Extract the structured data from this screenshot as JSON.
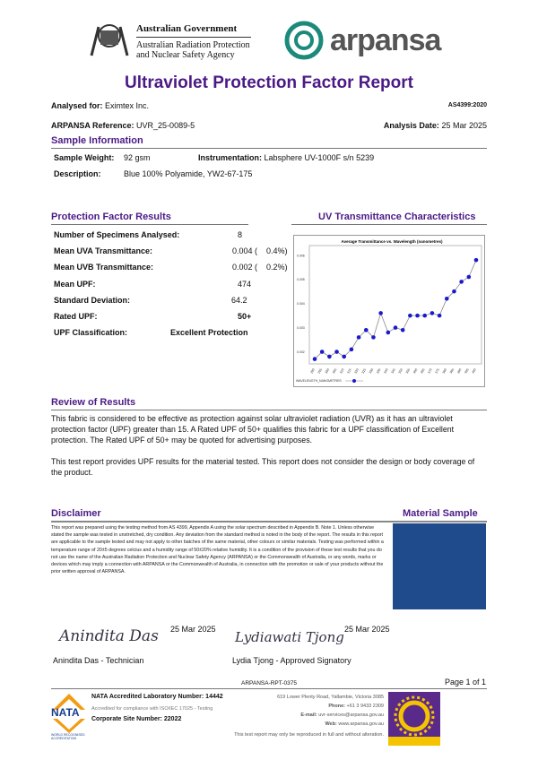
{
  "header": {
    "gov_line1": "Australian Government",
    "gov_line2": "Australian Radiation Protection",
    "gov_line3": "and Nuclear Safety Agency",
    "brand": "arpansa"
  },
  "title": "Ultraviolet Protection Factor Report",
  "meta": {
    "analysed_for_label": "Analysed for:",
    "analysed_for": "Eximtex Inc.",
    "standard": "AS4399:2020",
    "ref_label": "ARPANSA Reference:",
    "ref": "UVR_25-0089-5",
    "date_label": "Analysis Date:",
    "date": "25 Mar 2025"
  },
  "sample": {
    "heading": "Sample Information",
    "weight_label": "Sample Weight:",
    "weight": "92 gsm",
    "instr_label": "Instrumentation:",
    "instr": "Labsphere UV-1000F s/n 5239",
    "desc_label": "Description:",
    "desc": "Blue 100% Polyamide, YW2-67-175"
  },
  "results": {
    "heading": "Protection Factor Results",
    "rows": [
      {
        "label": "Number of Specimens Analysed:",
        "value": "8",
        "pct": ""
      },
      {
        "label": "Mean UVA Transmittance:",
        "value": "0.004 (",
        "pct": "0.4%)"
      },
      {
        "label": "Mean UVB Transmittance:",
        "value": "0.002 (",
        "pct": "0.2%)"
      },
      {
        "label": "Mean UPF:",
        "value": "474",
        "pct": ""
      },
      {
        "label": "Standard Deviation:",
        "value": "64.2",
        "pct": ""
      },
      {
        "label": "Rated UPF:",
        "value": "50+",
        "pct": ""
      },
      {
        "label": "UPF Classification:",
        "value": "Excellent Protection",
        "pct": ""
      }
    ]
  },
  "chart_heading": "UV Transmittance Characteristics",
  "chart_data": {
    "type": "line",
    "title": "Average Transmittance vs. Wavelength (nanometres)",
    "xlabel": "WAVELENGTH_NANOMETRES",
    "ylim": [
      0.0015,
      0.0064
    ],
    "yticks": [
      "0.002",
      "0.003",
      "0.004",
      "0.005",
      "0.006"
    ],
    "x": [
      290,
      295,
      300,
      305,
      310,
      315,
      320,
      325,
      330,
      335,
      340,
      345,
      350,
      355,
      360,
      365,
      370,
      375,
      380,
      385,
      390,
      395,
      400
    ],
    "values": [
      0.0017,
      0.002,
      0.0018,
      0.002,
      0.0018,
      0.0021,
      0.0026,
      0.0029,
      0.0026,
      0.0036,
      0.0028,
      0.003,
      0.0029,
      0.0035,
      0.0035,
      0.0035,
      0.0036,
      0.0035,
      0.0042,
      0.0045,
      0.0049,
      0.0051,
      0.0058
    ],
    "color": "#1a1acc"
  },
  "review": {
    "heading": "Review of Results",
    "p1": "This fabric is considered to be effective as protection against solar ultraviolet radiation (UVR) as it has an ultraviolet protection factor (UPF) greater than 15. A Rated UPF of 50+ qualifies this fabric for a UPF classification of Excellent protection. The Rated UPF of 50+ may be quoted for advertising purposes.",
    "p2": "This test report provides UPF results for the material tested. This report does not consider the design or body coverage of the product."
  },
  "disclaimer": {
    "heading": "Disclaimer",
    "text": "This report was prepared using the testing method from AS 4399, Appendix A using the solar spectrum described in Appendix B. Note 1. Unless otherwise stated the sample was tested in unstretched, dry condition. Any deviation from the standard method is noted in the body of the report. The results in this report are applicable to the sample tested and may not apply to other batches of the same material, other colours or similar materials. Testing was performed within a temperature range of 20±5 degrees celcius and a humidity range of 50±20% relative humidity. It is a condition of the provision of these test results that you do not use the name of the Australian Radiation Protection and Nuclear Safety Agency (ARPANSA) or the Commonwealth of Australia, or any words, marks or devices which may imply a connection with ARPANSA or the Commonwealth of Australia, in connection with the promotion or sale of your products without the prior written approval of ARPANSA."
  },
  "material_sample": {
    "heading": "Material Sample",
    "color": "#1f4a8c"
  },
  "signatures": [
    {
      "script": "Anindita Das",
      "date": "25 Mar 2025",
      "name": "Anindita Das - Technician"
    },
    {
      "script": "Lydiawati Tjong",
      "date": "25 Mar 2025",
      "name": "Lydia Tjong - Approved Signatory"
    }
  ],
  "footer": {
    "doc_id": "ARPANSA-RPT-0375",
    "page": "Page 1 of 1",
    "nata_logo": "NATA",
    "nata_sub": "WORLD RECOGNISED ACCREDITATION",
    "nata_num": "NATA Accredited Laboratory Number: 14442",
    "accredited": "Accredited for compliance with ISO/IEC 17025 - Testing",
    "site": "Corporate Site Number: 22022",
    "address": "619 Lower Plenty Road, Yallambie, Victoria 3085",
    "phone_label": "Phone:",
    "phone": "+61 3 9433 2309",
    "email_label": "E-mail:",
    "email": "uvr-services@arpansa.gov.au",
    "web_label": "Web:",
    "web": "www.arpansa.gov.au",
    "note": "This test report may only be reproduced in full and without alteration."
  }
}
